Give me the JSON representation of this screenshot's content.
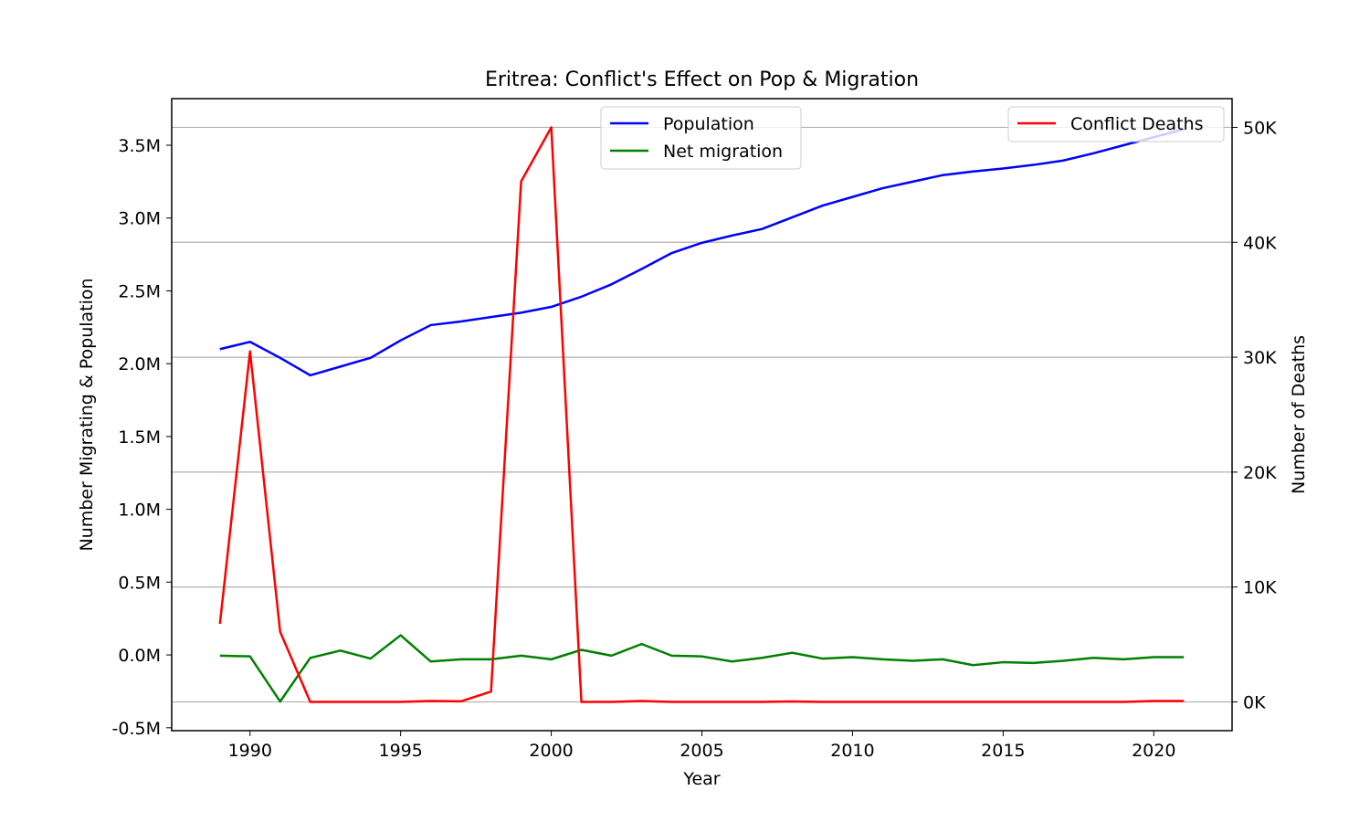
{
  "chart_data": {
    "type": "line",
    "title": "Eritrea: Conflict's Effect on Pop & Migration",
    "xlabel": "Year",
    "ylabel_left": "Number Migrating & Population",
    "ylabel_right": "Number of Deaths",
    "xlim": [
      1987.4,
      2022.6
    ],
    "ylim_left": [
      -520000,
      3820000
    ],
    "ylim_right": [
      -2500,
      52500
    ],
    "x_ticks": [
      1990,
      1995,
      2000,
      2005,
      2010,
      2015,
      2020
    ],
    "x_tick_labels": [
      "1990",
      "1995",
      "2000",
      "2005",
      "2010",
      "2015",
      "2020"
    ],
    "y_left_ticks": [
      -500000,
      0,
      500000,
      1000000,
      1500000,
      2000000,
      2500000,
      3000000,
      3500000
    ],
    "y_left_tick_labels": [
      "-0.5M",
      "0.0M",
      "0.5M",
      "1.0M",
      "1.5M",
      "2.0M",
      "2.5M",
      "3.0M",
      "3.5M"
    ],
    "y_right_ticks": [
      0,
      10000,
      20000,
      30000,
      40000,
      50000
    ],
    "y_right_tick_labels": [
      "0K",
      "10K",
      "20K",
      "30K",
      "40K",
      "50K"
    ],
    "grid": "horizontal lines at right-axis ticks",
    "legend_left": {
      "placement": "upper-center",
      "entries": [
        "Population",
        "Net migration"
      ]
    },
    "legend_right": {
      "placement": "upper-right",
      "entries": [
        "Conflict Deaths"
      ]
    },
    "x": [
      1989,
      1990,
      1991,
      1992,
      1993,
      1994,
      1995,
      1996,
      1997,
      1998,
      1999,
      2000,
      2001,
      2002,
      2003,
      2004,
      2005,
      2006,
      2007,
      2008,
      2009,
      2010,
      2011,
      2012,
      2013,
      2014,
      2015,
      2016,
      2017,
      2018,
      2019,
      2020,
      2021
    ],
    "series": [
      {
        "name": "Population",
        "axis": "left",
        "color": "#0000ff",
        "values": [
          2100000,
          2150000,
          2040000,
          1920000,
          1980000,
          2040000,
          2160000,
          2265000,
          2290000,
          2320000,
          2350000,
          2390000,
          2460000,
          2545000,
          2650000,
          2760000,
          2830000,
          2880000,
          2925000,
          3005000,
          3085000,
          3145000,
          3205000,
          3250000,
          3295000,
          3320000,
          3340000,
          3365000,
          3395000,
          3445000,
          3500000,
          3555000,
          3610000
        ]
      },
      {
        "name": "Net migration",
        "axis": "left",
        "color": "#008000",
        "values": [
          -5000,
          -10000,
          -320000,
          -20000,
          30000,
          -25000,
          135000,
          -45000,
          -30000,
          -30000,
          -5000,
          -30000,
          35000,
          -5000,
          75000,
          -5000,
          -10000,
          -45000,
          -20000,
          15000,
          -25000,
          -15000,
          -30000,
          -40000,
          -30000,
          -70000,
          -50000,
          -55000,
          -40000,
          -20000,
          -30000,
          -15000,
          -15000
        ]
      },
      {
        "name": "Conflict Deaths",
        "axis": "right",
        "color": "#ff0000",
        "values": [
          6800,
          30500,
          6100,
          0,
          0,
          0,
          0,
          80,
          50,
          900,
          45300,
          50000,
          0,
          0,
          80,
          0,
          0,
          0,
          0,
          40,
          0,
          0,
          0,
          0,
          0,
          0,
          0,
          0,
          0,
          0,
          0,
          80,
          80
        ]
      }
    ]
  }
}
